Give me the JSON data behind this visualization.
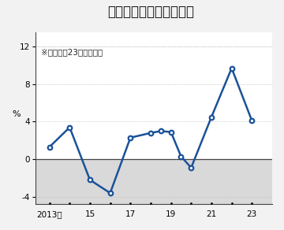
{
  "title": "国内企業物価指数の推移",
  "subtitle": "※前年比、23年は速報値",
  "ylabel": "%",
  "x_data": [
    2013,
    2014,
    2015,
    2016,
    2017,
    2018,
    2018.5,
    2019,
    2019.5,
    2020,
    2021,
    2022,
    2023
  ],
  "y_data": [
    1.3,
    3.4,
    -2.2,
    -3.6,
    2.3,
    2.8,
    3.0,
    2.9,
    0.3,
    -0.9,
    4.5,
    9.7,
    4.1
  ],
  "ylim": [
    -4.8,
    13.5
  ],
  "yticks": [
    -4,
    0,
    4,
    8,
    12
  ],
  "yticklabels": [
    "-4",
    "0",
    "4",
    "8",
    "12"
  ],
  "xlim": [
    2012.3,
    2024.0
  ],
  "xticks": [
    2013,
    2015,
    2017,
    2019,
    2021,
    2023
  ],
  "xticklabels": [
    "2013年",
    "15",
    "17",
    "19",
    "21",
    "23"
  ],
  "dot_years": [
    2013,
    2014,
    2015,
    2016,
    2017,
    2018,
    2019,
    2020,
    2021,
    2022,
    2023
  ],
  "line_color": "#1a5298",
  "marker_facecolor": "#ffffff",
  "marker_edgecolor": "#1a5298",
  "bg_color": "#f2f2f2",
  "plot_bg": "#ffffff",
  "negative_shade_color": "#d9d9d9",
  "zero_line_color": "#444444",
  "grid_color": "#bbbbbb",
  "title_fontsize": 12,
  "subtitle_fontsize": 7.5,
  "tick_fontsize": 7.5,
  "ylabel_fontsize": 8
}
